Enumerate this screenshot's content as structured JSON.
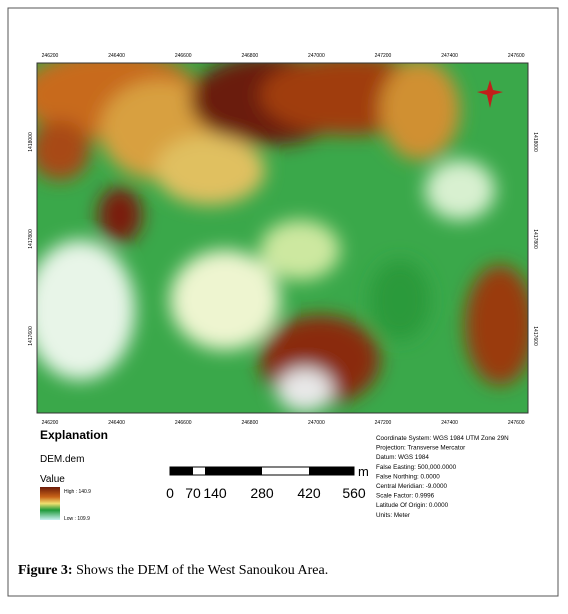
{
  "map": {
    "top_ticks": [
      "246200",
      "246400",
      "246600",
      "246800",
      "247000",
      "247200",
      "247400",
      "247600"
    ],
    "bottom_ticks": [
      "246200",
      "246400",
      "246600",
      "246800",
      "247000",
      "247200",
      "247400",
      "247600"
    ],
    "left_ticks": [
      "1418000",
      "1417800",
      "1417600"
    ],
    "right_ticks": [
      "1418000",
      "1417800",
      "1417600"
    ]
  },
  "legend": {
    "heading": "Explanation",
    "layer": "DEM.dem",
    "field": "Value",
    "high": "High : 140.9",
    "low": "Low : 109.9"
  },
  "scale_bar": {
    "labels": [
      "0",
      "70",
      "140",
      "280",
      "420",
      "560"
    ],
    "unit": "m"
  },
  "coordinate_info": [
    "Coordinate System: WGS 1984 UTM Zone 29N",
    "Projection: Transverse Mercator",
    "Datum: WGS 1984",
    "False Easting: 500,000.0000",
    "False Northing: 0.0000",
    "Central Meridian: -9.0000",
    "Scale Factor: 0.9996",
    "Latitude Of Origin: 0.0000",
    "Units: Meter"
  ],
  "caption": {
    "label": "Figure 3:",
    "text": "Shows the DEM of the West Sanoukou Area."
  }
}
